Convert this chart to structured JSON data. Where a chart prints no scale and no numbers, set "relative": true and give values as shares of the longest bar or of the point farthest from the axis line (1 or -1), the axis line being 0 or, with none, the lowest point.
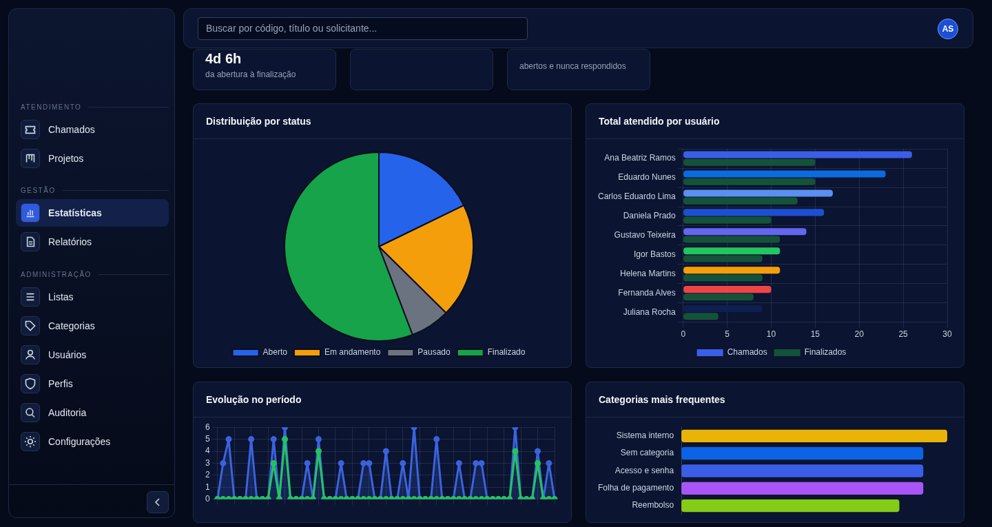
{
  "chart_data": [
    {
      "type": "other",
      "title": "ATENDIMENTO",
      "annotations": [
        "Chamados",
        "Projetos"
      ]
    },
    {
      "type": "other",
      "title": "GESTÃO",
      "annotations": [
        "Estatísticas",
        "Relatórios"
      ]
    },
    {
      "type": "other",
      "title": "ADMINISTRAÇÃO",
      "annotations": [
        "Listas",
        "Categorias",
        "Usuários",
        "Perfis",
        "Auditoria",
        "Configurações"
      ]
    },
    {
      "type": "other",
      "annotations": [
        "Buscar por código, título ou solicitante...",
        "AS"
      ]
    },
    {
      "type": "other",
      "annotations": [
        "4d 6h",
        "da abertura à finalização",
        "abertos e nunca respondidos"
      ]
    },
    {
      "type": "pie",
      "title": "Distribuição por status",
      "categories": [
        "Aberto",
        "Em andamento",
        "Pausado",
        "Finalizado"
      ],
      "values": [
        17.8,
        19.6,
        6.8,
        55.8
      ],
      "colors": [
        "#2563eb",
        "#f59e0b",
        "#6b7280",
        "#16a34a"
      ],
      "legend": "bottom"
    },
    {
      "type": "bar",
      "orientation": "horizontal",
      "title": "Total atendido por usuário",
      "categories": [
        "Ana Beatriz Ramos",
        "Eduardo Nunes",
        "Carlos Eduardo Lima",
        "Daniela Prado",
        "Gustavo Teixeira",
        "Igor Bastos",
        "Helena Martins",
        "Fernanda Alves",
        "Juliana Rocha"
      ],
      "series": [
        {
          "name": "Chamados",
          "color": "#3b5ee8",
          "colors": [
            "#3b5ee8",
            "#0b6be0",
            "#5b8ff0",
            "#1e4fd0",
            "#6366f1",
            "#22c55e",
            "#f59e0b",
            "#ef4444",
            "#0f1f50"
          ],
          "values": [
            26,
            23,
            17,
            16,
            14,
            11,
            11,
            10,
            9
          ]
        },
        {
          "name": "Finalizados",
          "color": "#14533a",
          "values": [
            15,
            15,
            13,
            10,
            11,
            9,
            9,
            8,
            4
          ]
        }
      ],
      "xlim": [
        0,
        30
      ],
      "xticks": [
        0,
        5,
        10,
        15,
        20,
        25,
        30
      ],
      "grid": true,
      "legend": "bottom"
    },
    {
      "type": "line",
      "title": "Evolução no período",
      "categories": [
        null,
        null,
        null,
        null,
        null,
        null,
        null,
        null,
        null,
        null,
        null,
        null,
        null,
        null,
        null,
        null,
        null,
        null,
        null,
        null,
        null,
        null,
        null,
        null,
        null,
        null,
        null,
        null,
        null,
        null,
        null,
        null,
        null,
        null,
        null,
        null,
        null,
        null,
        null,
        null,
        null,
        null,
        null,
        null,
        null,
        null,
        null,
        null,
        null,
        null,
        null,
        null,
        null,
        null,
        null,
        null,
        null,
        null,
        null,
        null,
        null
      ],
      "series": [
        {
          "type": "area",
          "color": "#3b63e0",
          "values": [
            0,
            3,
            5,
            0,
            0,
            0,
            5,
            0,
            0,
            0,
            5,
            0,
            6,
            0,
            0,
            0,
            3,
            0,
            5,
            0,
            0,
            0,
            3,
            0,
            0,
            0,
            3,
            3,
            0,
            0,
            4,
            0,
            0,
            3,
            0,
            6,
            0,
            0,
            0,
            5,
            0,
            0,
            0,
            3,
            0,
            0,
            3,
            3,
            0,
            0,
            0,
            0,
            0,
            6,
            0,
            0,
            0,
            4,
            0,
            3,
            0
          ]
        },
        {
          "type": "line",
          "color": "#22c55e",
          "values": [
            0,
            0,
            0,
            0,
            0,
            0,
            0,
            0,
            0,
            0,
            3,
            0,
            5,
            0,
            0,
            0,
            0,
            0,
            4,
            0,
            0,
            0,
            0,
            0,
            0,
            0,
            0,
            0,
            0,
            0,
            0,
            0,
            0,
            0,
            0,
            0,
            0,
            0,
            0,
            0,
            0,
            0,
            0,
            0,
            0,
            0,
            0,
            0,
            0,
            0,
            0,
            0,
            0,
            4,
            0,
            0,
            0,
            3,
            0,
            0,
            0
          ]
        }
      ],
      "ylim": [
        0,
        6
      ],
      "yticks": [
        0,
        1,
        2,
        3,
        4,
        5,
        6
      ],
      "grid": true,
      "marker": "circle"
    },
    {
      "type": "bar",
      "orientation": "horizontal",
      "title": "Categorias mais frequentes",
      "relative": true,
      "categories": [
        "Sistema interno",
        "Sem categoria",
        "Acesso e senha",
        "Folha de pagamento",
        "Reembolso"
      ],
      "series": [
        {
          "colors": [
            "#eab308",
            "#0b63e5",
            "#3b5ee8",
            "#a855f7",
            "#84cc16"
          ],
          "values": [
            1,
            0.91,
            0.91,
            0.91,
            0.82
          ]
        }
      ]
    }
  ]
}
